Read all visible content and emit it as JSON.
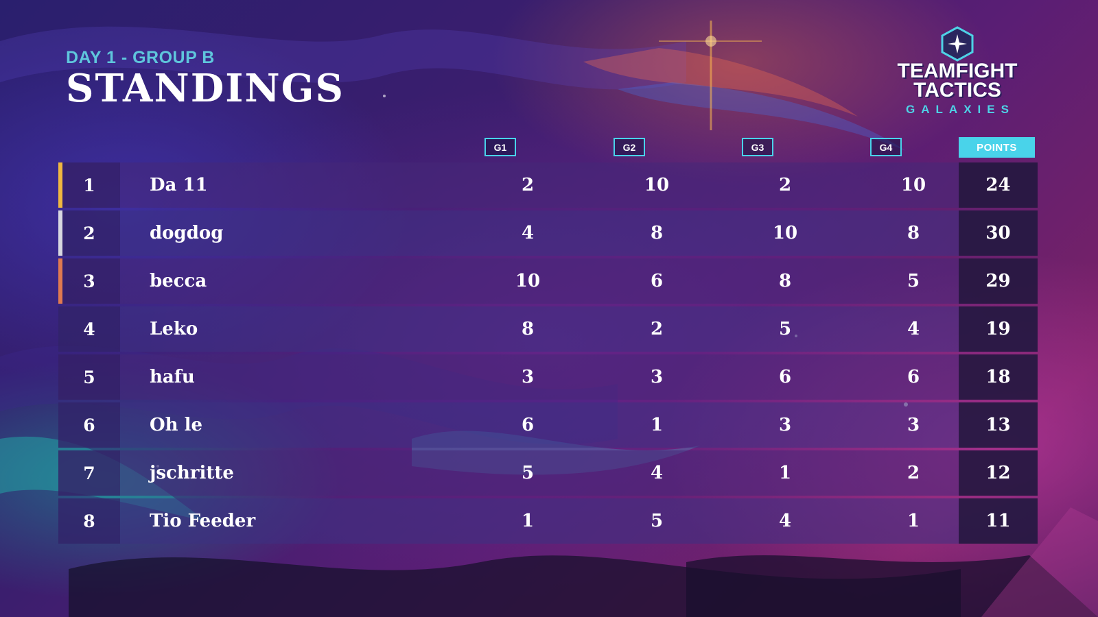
{
  "header": {
    "subtitle": "DAY 1 - GROUP B",
    "title": "STANDINGS"
  },
  "logo": {
    "line1": "TEAMFIGHT",
    "line2": "TACTICS",
    "line3": "GALAXIES",
    "icon": "star-emblem-icon"
  },
  "columns": {
    "g1": "G1",
    "g2": "G2",
    "g3": "G3",
    "g4": "G4",
    "points": "POINTS"
  },
  "colors": {
    "accent_cyan": "#49d3ea",
    "subtitle_cyan": "#5fc6dc",
    "rank1_gold": "#f0b840",
    "rank2_silver": "#d8d8e0",
    "rank3_bronze": "#e07a50"
  },
  "rows": [
    {
      "rank": "1",
      "name": "Da 11",
      "g1": "2",
      "g2": "10",
      "g3": "2",
      "g4": "10",
      "points": "24"
    },
    {
      "rank": "2",
      "name": "dogdog",
      "g1": "4",
      "g2": "8",
      "g3": "10",
      "g4": "8",
      "points": "30"
    },
    {
      "rank": "3",
      "name": "becca",
      "g1": "10",
      "g2": "6",
      "g3": "8",
      "g4": "5",
      "points": "29"
    },
    {
      "rank": "4",
      "name": "Leko",
      "g1": "8",
      "g2": "2",
      "g3": "5",
      "g4": "4",
      "points": "19"
    },
    {
      "rank": "5",
      "name": "hafu",
      "g1": "3",
      "g2": "3",
      "g3": "6",
      "g4": "6",
      "points": "18"
    },
    {
      "rank": "6",
      "name": "Oh le",
      "g1": "6",
      "g2": "1",
      "g3": "3",
      "g4": "3",
      "points": "13"
    },
    {
      "rank": "7",
      "name": "jschritte",
      "g1": "5",
      "g2": "4",
      "g3": "1",
      "g4": "2",
      "points": "12"
    },
    {
      "rank": "8",
      "name": "Tio Feeder",
      "g1": "1",
      "g2": "5",
      "g3": "4",
      "g4": "1",
      "points": "11"
    }
  ]
}
